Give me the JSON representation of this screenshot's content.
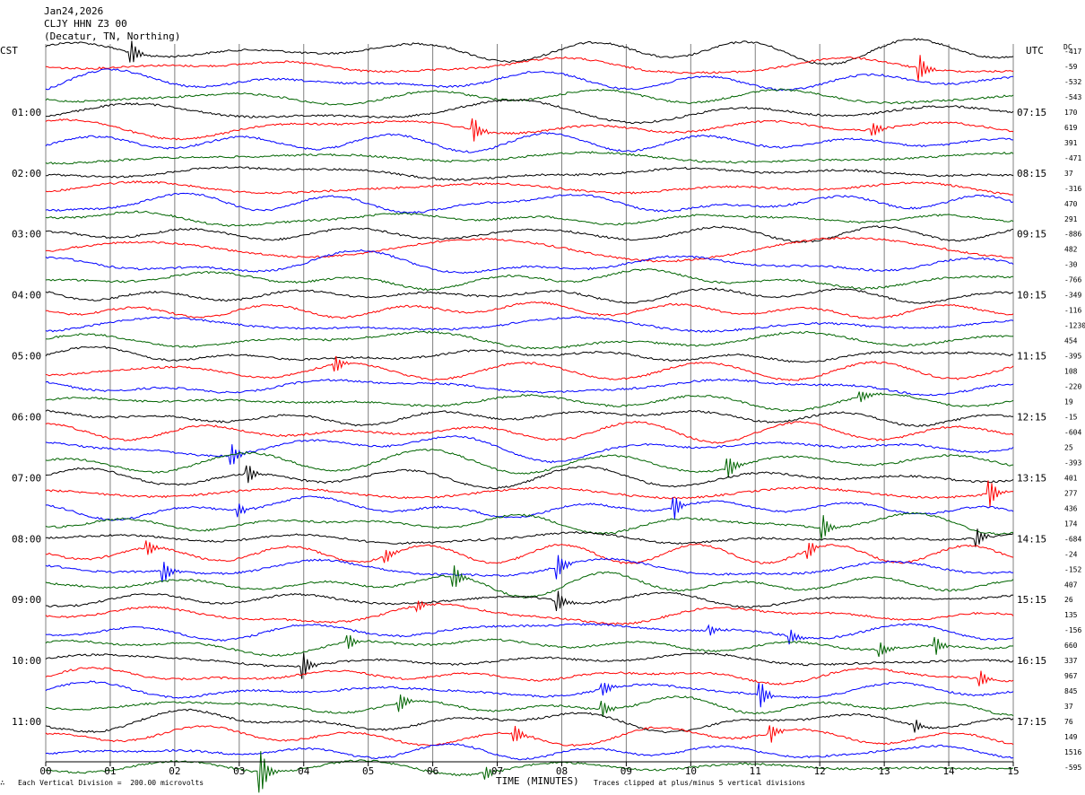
{
  "header": {
    "date": "Jan24,2026",
    "station": "CLJY HHN Z3 00",
    "location": "(Decatur, TN, Northing)"
  },
  "labels": {
    "left_tz": "CST",
    "right_tz": "UTC",
    "dc_header": "DC",
    "x_axis_title": "TIME (MINUTES)",
    "vertical_division": "Each Vertical Division =  200.00 microvolts",
    "clip_note": "Traces clipped at plus/minus 5 vertical divisions",
    "logo_mark": "∴"
  },
  "colors": {
    "trace_cycle": [
      "#000000",
      "#ff0000",
      "#0000ff",
      "#006400"
    ],
    "grid": "#808080",
    "background": "#ffffff"
  },
  "chart_data": {
    "type": "line",
    "chart_kind": "helicorder",
    "x_unit": "minutes",
    "xlim": [
      0,
      15
    ],
    "x_ticks": [
      "00",
      "01",
      "02",
      "03",
      "04",
      "05",
      "06",
      "07",
      "08",
      "09",
      "10",
      "11",
      "12",
      "13",
      "14",
      "15"
    ],
    "minutes_per_line": 15,
    "num_lines": 48,
    "left_time_labels": [
      {
        "line": 4,
        "text": "01:00"
      },
      {
        "line": 8,
        "text": "02:00"
      },
      {
        "line": 12,
        "text": "03:00"
      },
      {
        "line": 16,
        "text": "04:00"
      },
      {
        "line": 20,
        "text": "05:00"
      },
      {
        "line": 24,
        "text": "06:00"
      },
      {
        "line": 28,
        "text": "07:00"
      },
      {
        "line": 32,
        "text": "08:00"
      },
      {
        "line": 36,
        "text": "09:00"
      },
      {
        "line": 40,
        "text": "10:00"
      },
      {
        "line": 44,
        "text": "11:00"
      }
    ],
    "right_time_labels": [
      {
        "line": 4,
        "text": "07:15"
      },
      {
        "line": 8,
        "text": "08:15"
      },
      {
        "line": 12,
        "text": "09:15"
      },
      {
        "line": 16,
        "text": "10:15"
      },
      {
        "line": 20,
        "text": "11:15"
      },
      {
        "line": 24,
        "text": "12:15"
      },
      {
        "line": 28,
        "text": "13:15"
      },
      {
        "line": 32,
        "text": "14:15"
      },
      {
        "line": 36,
        "text": "15:15"
      },
      {
        "line": 40,
        "text": "16:15"
      },
      {
        "line": 44,
        "text": "17:15"
      }
    ],
    "dc_offsets": [
      "-417",
      "-59",
      "-532",
      "-543",
      "170",
      "619",
      "391",
      "-471",
      "37",
      "-316",
      "470",
      "291",
      "-886",
      "482",
      "-30",
      "-766",
      "-349",
      "-116",
      "-1230",
      "454",
      "-395",
      "108",
      "-220",
      "19",
      "-15",
      "-604",
      "25",
      "-393",
      "401",
      "277",
      "436",
      "174",
      "-684",
      "-24",
      "-152",
      "407",
      "26",
      "135",
      "-156",
      "660",
      "337",
      "967",
      "845",
      "37",
      "76",
      "149",
      "1516",
      "-595"
    ],
    "events": [
      {
        "line": 0,
        "minute": 1.35,
        "amp": 0.9
      },
      {
        "line": 1,
        "minute": 13.55,
        "amp": 1.1
      },
      {
        "line": 5,
        "minute": 6.65,
        "amp": 0.9
      },
      {
        "line": 5,
        "minute": 12.85,
        "amp": 0.5
      },
      {
        "line": 21,
        "minute": 4.5,
        "amp": 0.6
      },
      {
        "line": 23,
        "minute": 12.65,
        "amp": 0.4
      },
      {
        "line": 26,
        "minute": 2.9,
        "amp": 0.8
      },
      {
        "line": 27,
        "minute": 10.6,
        "amp": 0.8
      },
      {
        "line": 28,
        "minute": 3.15,
        "amp": 0.7
      },
      {
        "line": 29,
        "minute": 14.65,
        "amp": 1.1
      },
      {
        "line": 30,
        "minute": 3.0,
        "amp": 0.5
      },
      {
        "line": 30,
        "minute": 9.75,
        "amp": 0.9
      },
      {
        "line": 31,
        "minute": 12.05,
        "amp": 1.0
      },
      {
        "line": 32,
        "minute": 14.45,
        "amp": 0.7
      },
      {
        "line": 33,
        "minute": 1.6,
        "amp": 0.6
      },
      {
        "line": 33,
        "minute": 5.3,
        "amp": 0.5
      },
      {
        "line": 33,
        "minute": 11.85,
        "amp": 0.6
      },
      {
        "line": 34,
        "minute": 1.85,
        "amp": 0.8
      },
      {
        "line": 34,
        "minute": 7.95,
        "amp": 0.9
      },
      {
        "line": 35,
        "minute": 6.35,
        "amp": 0.9
      },
      {
        "line": 36,
        "minute": 7.95,
        "amp": 0.8
      },
      {
        "line": 37,
        "minute": 5.8,
        "amp": 0.4
      },
      {
        "line": 38,
        "minute": 10.3,
        "amp": 0.4
      },
      {
        "line": 38,
        "minute": 11.55,
        "amp": 0.6
      },
      {
        "line": 39,
        "minute": 4.7,
        "amp": 0.6
      },
      {
        "line": 39,
        "minute": 12.95,
        "amp": 0.6
      },
      {
        "line": 39,
        "minute": 13.8,
        "amp": 0.7
      },
      {
        "line": 40,
        "minute": 4.0,
        "amp": 1.0
      },
      {
        "line": 41,
        "minute": 14.5,
        "amp": 0.6
      },
      {
        "line": 42,
        "minute": 8.65,
        "amp": 0.5
      },
      {
        "line": 42,
        "minute": 11.1,
        "amp": 1.0
      },
      {
        "line": 43,
        "minute": 5.5,
        "amp": 0.7
      },
      {
        "line": 43,
        "minute": 8.65,
        "amp": 0.6
      },
      {
        "line": 44,
        "minute": 13.5,
        "amp": 0.5
      },
      {
        "line": 45,
        "minute": 7.3,
        "amp": 0.6
      },
      {
        "line": 45,
        "minute": 11.25,
        "amp": 0.7
      },
      {
        "line": 47,
        "minute": 3.35,
        "amp": 1.6
      },
      {
        "line": 47,
        "minute": 6.85,
        "amp": 0.5
      }
    ]
  }
}
